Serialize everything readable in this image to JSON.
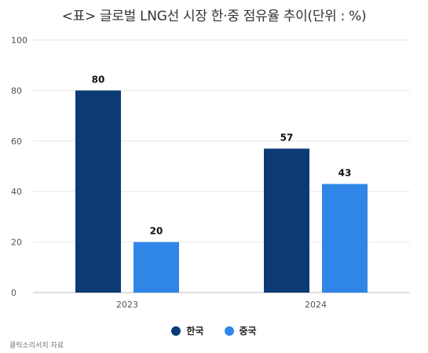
{
  "chart_data": {
    "type": "bar",
    "title": "<표> 글로벌 LNG선 시장 한·중 점유율 추이(단위 : %)",
    "categories": [
      "2023",
      "2024"
    ],
    "series": [
      {
        "name": "한국",
        "color": "#0b3a75",
        "values": [
          80,
          57
        ]
      },
      {
        "name": "중국",
        "color": "#2f86e6",
        "values": [
          20,
          43
        ]
      }
    ],
    "ylim": [
      0,
      100
    ],
    "yticks": [
      0,
      20,
      40,
      60,
      80,
      100
    ],
    "xlabel": "",
    "ylabel": "",
    "grid": true,
    "legend_position": "bottom"
  },
  "source": "클릭소리서치 자료"
}
